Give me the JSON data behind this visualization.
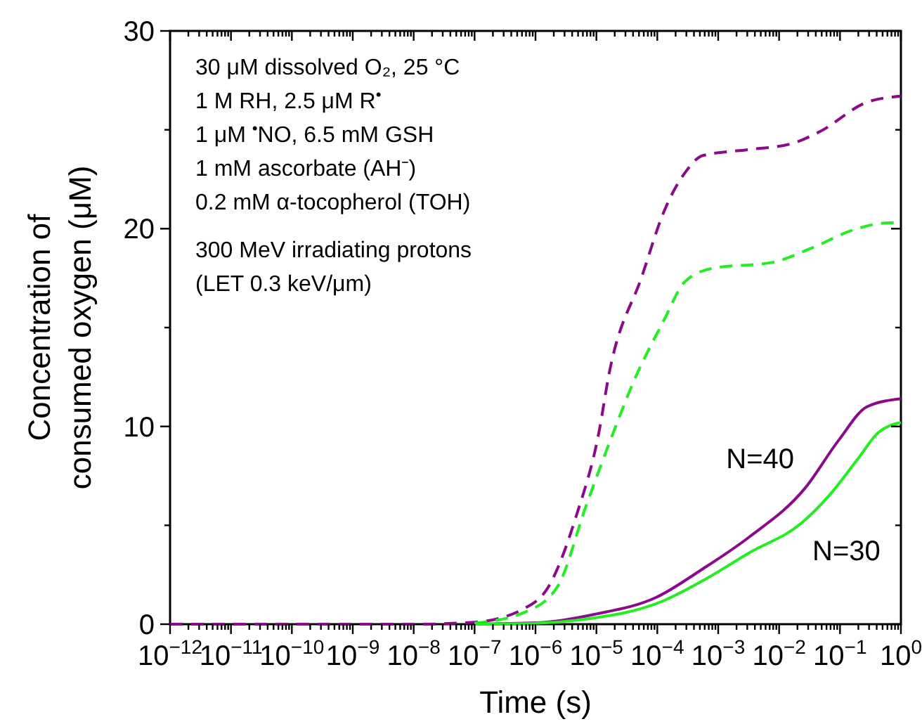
{
  "chart_data": {
    "type": "line",
    "xlabel": "Time (s)",
    "ylabel": "Concentration of\nconsumed oxygen (μM)",
    "log": "x",
    "line_style": "solid",
    "grid": false,
    "xlim": [
      1e-12,
      1
    ],
    "ylim": [
      0,
      30
    ],
    "xticks": [
      {
        "value": 1e-12,
        "label": "10$^{−12}$"
      },
      {
        "value": 2e-12,
        "label": null
      },
      {
        "value": 3e-12,
        "label": null
      },
      {
        "value": 4e-12,
        "label": null
      },
      {
        "value": 5e-12,
        "label": null
      },
      {
        "value": 6e-12,
        "label": null
      },
      {
        "value": 7e-12,
        "label": null
      },
      {
        "value": 8e-12,
        "label": null
      },
      {
        "value": 9e-12,
        "label": null
      },
      {
        "value": 1e-11,
        "label": "10$^{−11}$"
      },
      {
        "value": 2e-11,
        "label": null
      },
      {
        "value": 3e-11,
        "label": null
      },
      {
        "value": 4e-11,
        "label": null
      },
      {
        "value": 5e-11,
        "label": null
      },
      {
        "value": 6e-11,
        "label": null
      },
      {
        "value": 7e-11,
        "label": null
      },
      {
        "value": 8e-11,
        "label": null
      },
      {
        "value": 9e-11,
        "label": null
      },
      {
        "value": 1e-10,
        "label": "10$^{−10}$"
      },
      {
        "value": 2e-10,
        "label": null
      },
      {
        "value": 3e-10,
        "label": null
      },
      {
        "value": 4e-10,
        "label": null
      },
      {
        "value": 5e-10,
        "label": null
      },
      {
        "value": 6e-10,
        "label": null
      },
      {
        "value": 7e-10,
        "label": null
      },
      {
        "value": 8e-10,
        "label": null
      },
      {
        "value": 9e-10,
        "label": null
      },
      {
        "value": 1e-09,
        "label": "10$^{−9}$"
      },
      {
        "value": 2e-09,
        "label": null
      },
      {
        "value": 3e-09,
        "label": null
      },
      {
        "value": 4e-09,
        "label": null
      },
      {
        "value": 5e-09,
        "label": null
      },
      {
        "value": 6e-09,
        "label": null
      },
      {
        "value": 7e-09,
        "label": null
      },
      {
        "value": 8e-09,
        "label": null
      },
      {
        "value": 9e-09,
        "label": null
      },
      {
        "value": 1e-08,
        "label": "10$^{−8}$"
      },
      {
        "value": 2e-08,
        "label": null
      },
      {
        "value": 3e-08,
        "label": null
      },
      {
        "value": 4e-08,
        "label": null
      },
      {
        "value": 5e-08,
        "label": null
      },
      {
        "value": 6e-08,
        "label": null
      },
      {
        "value": 7e-08,
        "label": null
      },
      {
        "value": 8e-08,
        "label": null
      },
      {
        "value": 9e-08,
        "label": null
      },
      {
        "value": 1e-07,
        "label": "10$^{−7}$"
      },
      {
        "value": 2e-07,
        "label": null
      },
      {
        "value": 3e-07,
        "label": null
      },
      {
        "value": 4e-07,
        "label": null
      },
      {
        "value": 5e-07,
        "label": null
      },
      {
        "value": 6e-07,
        "label": null
      },
      {
        "value": 7e-07,
        "label": null
      },
      {
        "value": 8e-07,
        "label": null
      },
      {
        "value": 9e-07,
        "label": null
      },
      {
        "value": 1e-06,
        "label": "10$^{−6}$"
      },
      {
        "value": 2e-06,
        "label": null
      },
      {
        "value": 3e-06,
        "label": null
      },
      {
        "value": 4e-06,
        "label": null
      },
      {
        "value": 5e-06,
        "label": null
      },
      {
        "value": 6e-06,
        "label": null
      },
      {
        "value": 7e-06,
        "label": null
      },
      {
        "value": 8e-06,
        "label": null
      },
      {
        "value": 9e-06,
        "label": null
      },
      {
        "value": 1e-05,
        "label": "10$^{−5}$"
      },
      {
        "value": 2e-05,
        "label": null
      },
      {
        "value": 3e-05,
        "label": null
      },
      {
        "value": 4e-05,
        "label": null
      },
      {
        "value": 5e-05,
        "label": null
      },
      {
        "value": 6e-05,
        "label": null
      },
      {
        "value": 7e-05,
        "label": null
      },
      {
        "value": 8e-05,
        "label": null
      },
      {
        "value": 9e-05,
        "label": null
      },
      {
        "value": 0.0001,
        "label": "10$^{−4}$"
      },
      {
        "value": 0.0002,
        "label": null
      },
      {
        "value": 0.0003,
        "label": null
      },
      {
        "value": 0.0004,
        "label": null
      },
      {
        "value": 0.0005,
        "label": null
      },
      {
        "value": 0.0006,
        "label": null
      },
      {
        "value": 0.0007,
        "label": null
      },
      {
        "value": 0.0008,
        "label": null
      },
      {
        "value": 0.0009,
        "label": null
      },
      {
        "value": 0.001,
        "label": "10$^{−3}$"
      },
      {
        "value": 0.002,
        "label": null
      },
      {
        "value": 0.003,
        "label": null
      },
      {
        "value": 0.004,
        "label": null
      },
      {
        "value": 0.005,
        "label": null
      },
      {
        "value": 0.006,
        "label": null
      },
      {
        "value": 0.007,
        "label": null
      },
      {
        "value": 0.008,
        "label": null
      },
      {
        "value": 0.009,
        "label": null
      },
      {
        "value": 0.01,
        "label": "10$^{−2}$"
      },
      {
        "value": 0.02,
        "label": null
      },
      {
        "value": 0.03,
        "label": null
      },
      {
        "value": 0.04,
        "label": null
      },
      {
        "value": 0.05,
        "label": null
      },
      {
        "value": 0.06,
        "label": null
      },
      {
        "value": 0.07,
        "label": null
      },
      {
        "value": 0.08,
        "label": null
      },
      {
        "value": 0.09,
        "label": null
      },
      {
        "value": 0.1,
        "label": "10$^{−1}$"
      },
      {
        "value": 0.2,
        "label": null
      },
      {
        "value": 0.3,
        "label": null
      },
      {
        "value": 0.4,
        "label": null
      },
      {
        "value": 0.5,
        "label": null
      },
      {
        "value": 0.6,
        "label": null
      },
      {
        "value": 0.7,
        "label": null
      },
      {
        "value": 0.8,
        "label": null
      },
      {
        "value": 0.9,
        "label": null
      },
      {
        "value": 1,
        "label": "10$^{0}$"
      }
    ],
    "yticks": [
      0,
      {
        "value": 5,
        "label": null
      },
      10,
      {
        "value": 15,
        "label": null
      },
      20,
      {
        "value": 25,
        "label": null
      },
      30
    ],
    "series": [
      {
        "color": "#8b0a8b",
        "line_style": "dashed",
        "x": [
          1e-12,
          1e-08,
          1e-07,
          6.6e-07,
          1.6e-06,
          4.7e-06,
          1.1e-05,
          1.6e-05,
          5.6e-05,
          0.00013,
          0.00028,
          0.00056,
          0.0032,
          0.016,
          0.046,
          0.28,
          1
        ],
        "values": [
          0,
          0,
          0.1,
          0.8,
          1.85,
          5.5,
          9.7,
          12.6,
          17.6,
          20.9,
          22.8,
          23.7,
          24.0,
          24.3,
          24.9,
          26.4,
          26.7
        ]
      },
      {
        "color": "#22ee22",
        "line_style": "dashed",
        "x": [
          1e-07,
          6.6e-07,
          2.3e-06,
          6.8e-06,
          1.9e-05,
          4e-05,
          0.00013,
          0.00028,
          0.00081,
          0.0079,
          0.033,
          0.19,
          0.66,
          1
        ],
        "values": [
          0.05,
          0.6,
          1.9,
          6.0,
          9.7,
          12.2,
          15.4,
          17.3,
          18.0,
          18.3,
          19.0,
          20.0,
          20.3,
          20.3
        ]
      },
      {
        "name": "N=40",
        "color": "#8b0a8b",
        "x": [
          1e-07,
          1.1e-06,
          9.3e-06,
          9.5e-05,
          0.00056,
          0.0032,
          0.027,
          0.095,
          0.28,
          1
        ],
        "values": [
          0,
          0.07,
          0.5,
          1.35,
          2.8,
          4.4,
          6.9,
          9.3,
          11.0,
          11.4
        ]
      },
      {
        "name": "N=30",
        "color": "#22ee22",
        "x": [
          1e-07,
          1.1e-06,
          4.7e-06,
          0.00013,
          0.00056,
          0.0032,
          0.023,
          0.066,
          0.19,
          0.43,
          1
        ],
        "values": [
          0,
          0.05,
          0.2,
          1.2,
          2.2,
          3.6,
          5.1,
          6.5,
          8.3,
          9.7,
          10.2
        ]
      }
    ],
    "annotations": [
      "30 μM dissolved O₂, 25 °C",
      "1 M RH, 2.5 μM R$^{•}$",
      "1 μM $^{•}$NO, 6.5 mM GSH",
      "1 mM ascorbate (AH⁻)",
      "0.2 mM α-tocopherol (TOH)",
      "300 MeV irradiating protons",
      "(LET 0.3 keV/μm)"
    ]
  }
}
